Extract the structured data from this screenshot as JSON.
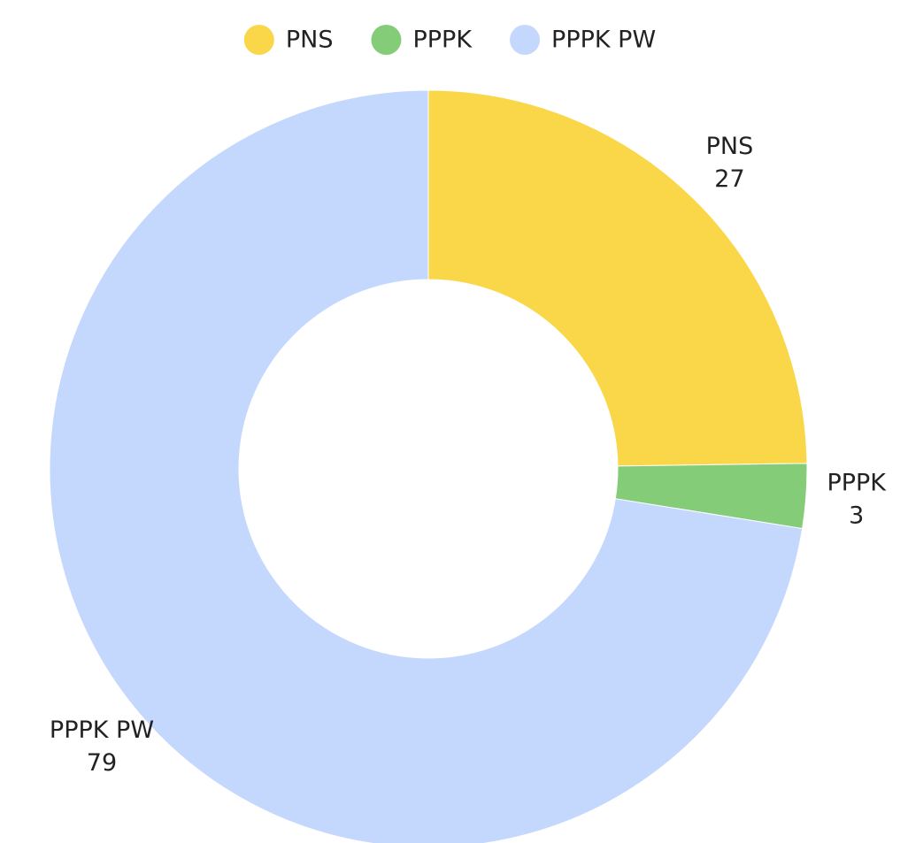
{
  "chart_data": {
    "type": "pie",
    "categories": [
      "PNS",
      "PPPK",
      "PPPK PW"
    ],
    "values": [
      27,
      3,
      79
    ],
    "colors": [
      "#f9d748",
      "#84cc78",
      "#c4d7fd"
    ],
    "legend": "top"
  }
}
